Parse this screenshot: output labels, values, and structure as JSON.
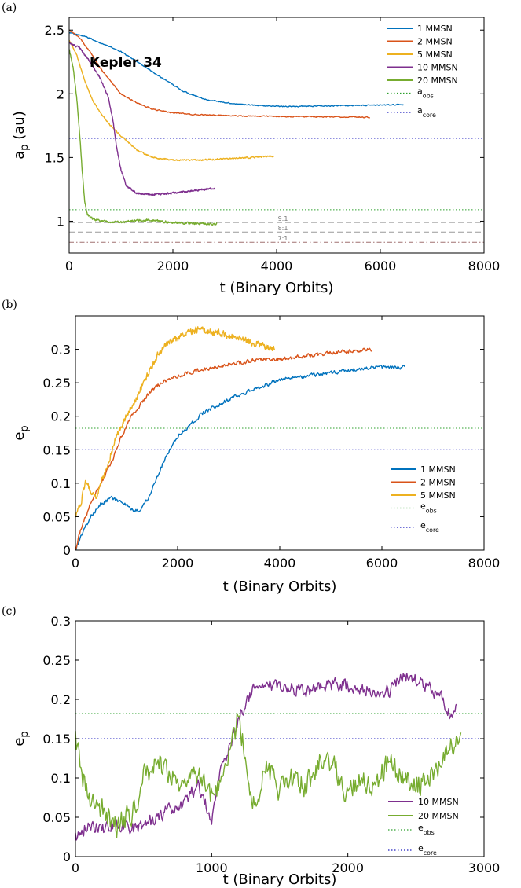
{
  "chart_data": [
    {
      "type": "line",
      "panel_label": "(a)",
      "annotation": "Kepler 34",
      "xlabel": "t (Binary Orbits)",
      "ylabel": {
        "main": "a",
        "sub": "p",
        "unit": " (au)"
      },
      "xlim": [
        0,
        8000
      ],
      "ylim": [
        0.75,
        2.6
      ],
      "xticks": [
        0,
        2000,
        4000,
        6000,
        8000
      ],
      "yticks": [
        1,
        1.5,
        2,
        2.5
      ],
      "ytick_labels": [
        "1",
        "1.5",
        "2",
        "2.5"
      ],
      "legend_position": "top-right",
      "series": [
        {
          "name": "1 MMSN",
          "color": "#0072BD",
          "noise": 0.006,
          "x": [
            0,
            300,
            600,
            1000,
            1400,
            1800,
            2200,
            2600,
            3000,
            3400,
            3800,
            4200,
            5000,
            5800,
            6450
          ],
          "y": [
            2.48,
            2.45,
            2.4,
            2.33,
            2.23,
            2.12,
            2.02,
            1.96,
            1.93,
            1.915,
            1.905,
            1.9,
            1.905,
            1.91,
            1.915
          ]
        },
        {
          "name": "2 MMSN",
          "color": "#D95319",
          "noise": 0.006,
          "x": [
            0,
            200,
            400,
            600,
            800,
            1000,
            1300,
            1600,
            2000,
            2500,
            3000,
            3500,
            4000,
            5000,
            5800
          ],
          "y": [
            2.5,
            2.44,
            2.33,
            2.2,
            2.1,
            2.0,
            1.93,
            1.88,
            1.85,
            1.835,
            1.83,
            1.825,
            1.822,
            1.82,
            1.815
          ]
        },
        {
          "name": "5 MMSN",
          "color": "#EDB120",
          "noise": 0.008,
          "x": [
            0,
            150,
            300,
            450,
            600,
            800,
            1000,
            1300,
            1600,
            2000,
            2500,
            3000,
            3500,
            3950
          ],
          "y": [
            2.42,
            2.3,
            2.1,
            1.95,
            1.85,
            1.75,
            1.67,
            1.56,
            1.5,
            1.48,
            1.48,
            1.49,
            1.5,
            1.51
          ]
        },
        {
          "name": "10 MMSN",
          "color": "#7E2F8E",
          "noise": 0.01,
          "x": [
            0,
            200,
            400,
            600,
            750,
            850,
            900,
            950,
            1000,
            1100,
            1300,
            1600,
            2000,
            2400,
            2800
          ],
          "y": [
            2.4,
            2.36,
            2.25,
            2.12,
            1.98,
            1.78,
            1.62,
            1.5,
            1.4,
            1.28,
            1.22,
            1.21,
            1.22,
            1.24,
            1.26
          ]
        },
        {
          "name": "20 MMSN",
          "color": "#77AC30",
          "noise": 0.012,
          "x": [
            0,
            80,
            150,
            200,
            250,
            300,
            350,
            450,
            600,
            900,
            1200,
            1500,
            2000,
            2500,
            2850
          ],
          "y": [
            2.35,
            2.2,
            1.95,
            1.7,
            1.4,
            1.15,
            1.05,
            1.02,
            1.0,
            0.99,
            1.0,
            1.01,
            0.99,
            0.98,
            0.98
          ]
        }
      ],
      "reference_lines": [
        {
          "name": "a",
          "sub": "obs",
          "value": 1.09,
          "color": "#2ca02c",
          "style": "dotted",
          "in_legend": true
        },
        {
          "name": "a",
          "sub": "core",
          "value": 1.65,
          "color": "#1f1fbf",
          "style": "dotted",
          "in_legend": true
        },
        {
          "label": "9:1",
          "value": 0.99,
          "color": "#999999",
          "style": "dashed",
          "in_legend": false
        },
        {
          "label": "8:1",
          "value": 0.915,
          "color": "#999999",
          "style": "dashed",
          "in_legend": false
        },
        {
          "label": "7:1",
          "value": 0.835,
          "color": "#a07070",
          "style": "dashdot",
          "in_legend": false
        }
      ]
    },
    {
      "type": "line",
      "panel_label": "(b)",
      "xlabel": "t (Binary Orbits)",
      "ylabel": {
        "main": "e",
        "sub": "p",
        "unit": ""
      },
      "xlim": [
        0,
        8000
      ],
      "ylim": [
        0,
        0.35
      ],
      "xticks": [
        0,
        2000,
        4000,
        6000,
        8000
      ],
      "yticks": [
        0,
        0.05,
        0.1,
        0.15,
        0.2,
        0.25,
        0.3
      ],
      "ytick_labels": [
        "0",
        "0.05",
        "0.1",
        "0.15",
        "0.2",
        "0.25",
        "0.3"
      ],
      "legend_position": "bottom-right",
      "series": [
        {
          "name": "1 MMSN",
          "color": "#0072BD",
          "noise": 0.004,
          "x": [
            0,
            100,
            300,
            500,
            700,
            900,
            1100,
            1250,
            1400,
            1600,
            1800,
            2000,
            2500,
            3000,
            3500,
            4000,
            5000,
            5500,
            6000,
            6450
          ],
          "y": [
            0.0,
            0.02,
            0.05,
            0.07,
            0.078,
            0.072,
            0.06,
            0.058,
            0.075,
            0.11,
            0.145,
            0.17,
            0.205,
            0.225,
            0.24,
            0.255,
            0.265,
            0.27,
            0.273,
            0.273
          ]
        },
        {
          "name": "2 MMSN",
          "color": "#D95319",
          "noise": 0.004,
          "x": [
            0,
            100,
            300,
            500,
            700,
            900,
            1100,
            1300,
            1500,
            1800,
            2200,
            2500,
            2800,
            3200,
            3600,
            4000,
            4500,
            5000,
            5500,
            5800
          ],
          "y": [
            0.0,
            0.03,
            0.07,
            0.1,
            0.13,
            0.17,
            0.2,
            0.22,
            0.24,
            0.255,
            0.265,
            0.27,
            0.275,
            0.28,
            0.285,
            0.285,
            0.29,
            0.295,
            0.298,
            0.3
          ]
        },
        {
          "name": "5 MMSN",
          "color": "#EDB120",
          "noise": 0.007,
          "x": [
            0,
            100,
            200,
            300,
            400,
            600,
            800,
            1000,
            1200,
            1400,
            1600,
            1800,
            2100,
            2400,
            2800,
            3200,
            3500,
            3900
          ],
          "y": [
            0.05,
            0.07,
            0.1,
            0.09,
            0.08,
            0.12,
            0.17,
            0.2,
            0.23,
            0.26,
            0.29,
            0.31,
            0.32,
            0.33,
            0.325,
            0.315,
            0.31,
            0.3
          ]
        }
      ],
      "reference_lines": [
        {
          "name": "e",
          "sub": "obs",
          "value": 0.182,
          "color": "#2ca02c",
          "style": "dotted",
          "in_legend": true
        },
        {
          "name": "e",
          "sub": "core",
          "value": 0.15,
          "color": "#1f1fbf",
          "style": "dotted",
          "in_legend": true
        }
      ]
    },
    {
      "type": "line",
      "panel_label": "(c)",
      "xlabel": "t (Binary Orbits)",
      "ylabel": {
        "main": "e",
        "sub": "p",
        "unit": ""
      },
      "xlim": [
        0,
        3000
      ],
      "ylim": [
        0,
        0.3
      ],
      "xticks": [
        0,
        1000,
        2000,
        3000
      ],
      "yticks": [
        0,
        0.05,
        0.1,
        0.15,
        0.2,
        0.25,
        0.3
      ],
      "ytick_labels": [
        "0",
        "0.05",
        "0.1",
        "0.15",
        "0.2",
        "0.25",
        "0.3"
      ],
      "legend_position": "bottom-right",
      "series": [
        {
          "name": "10 MMSN",
          "color": "#7E2F8E",
          "noise": 0.012,
          "x": [
            0,
            100,
            200,
            300,
            400,
            500,
            600,
            700,
            800,
            900,
            1000,
            1050,
            1100,
            1150,
            1200,
            1300,
            1400,
            1500,
            1700,
            1900,
            2100,
            2300,
            2400,
            2500,
            2600,
            2700,
            2750,
            2800
          ],
          "y": [
            0.03,
            0.04,
            0.035,
            0.04,
            0.035,
            0.04,
            0.05,
            0.06,
            0.07,
            0.09,
            0.05,
            0.1,
            0.12,
            0.15,
            0.18,
            0.21,
            0.22,
            0.215,
            0.21,
            0.22,
            0.215,
            0.21,
            0.23,
            0.225,
            0.215,
            0.2,
            0.18,
            0.195
          ]
        },
        {
          "name": "20 MMSN",
          "color": "#77AC30",
          "noise": 0.022,
          "x": [
            0,
            50,
            100,
            200,
            300,
            400,
            500,
            600,
            700,
            800,
            900,
            1000,
            1100,
            1200,
            1300,
            1400,
            1500,
            1600,
            1700,
            1800,
            1900,
            2000,
            2100,
            2200,
            2300,
            2400,
            2500,
            2600,
            2700,
            2800,
            2830
          ],
          "y": [
            0.16,
            0.1,
            0.07,
            0.06,
            0.04,
            0.05,
            0.1,
            0.12,
            0.1,
            0.09,
            0.1,
            0.08,
            0.1,
            0.18,
            0.06,
            0.12,
            0.08,
            0.1,
            0.09,
            0.12,
            0.11,
            0.08,
            0.1,
            0.09,
            0.12,
            0.1,
            0.09,
            0.1,
            0.12,
            0.15,
            0.14
          ]
        }
      ],
      "reference_lines": [
        {
          "name": "e",
          "sub": "obs",
          "value": 0.182,
          "color": "#2ca02c",
          "style": "dotted",
          "in_legend": true
        },
        {
          "name": "e",
          "sub": "core",
          "value": 0.15,
          "color": "#1f1fbf",
          "style": "dotted",
          "in_legend": true
        }
      ]
    }
  ]
}
